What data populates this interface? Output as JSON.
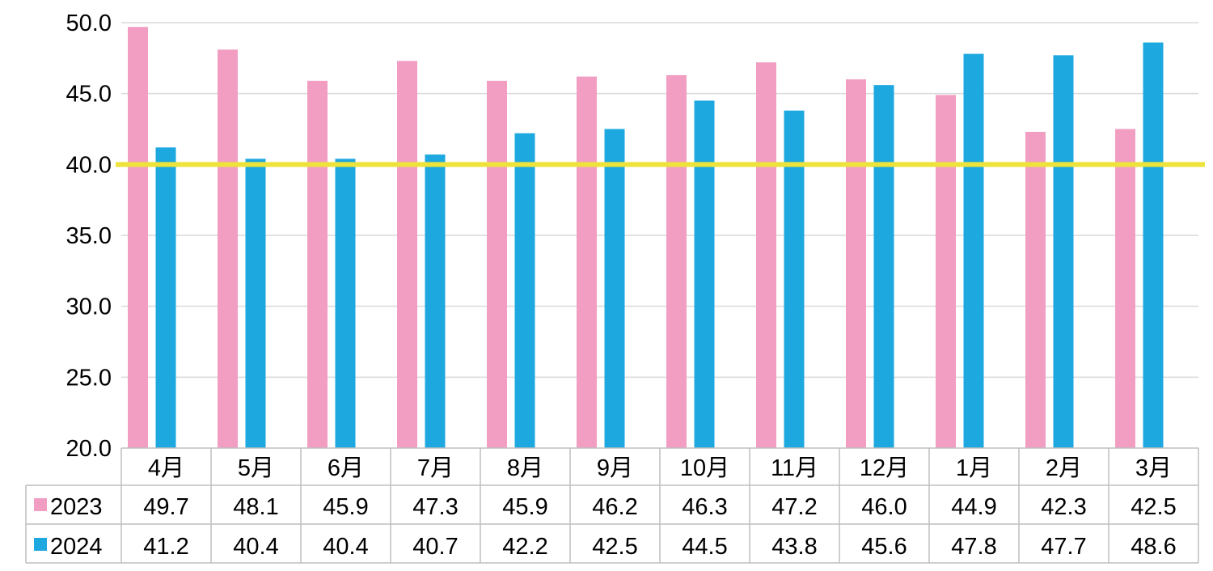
{
  "chart_data": {
    "type": "bar",
    "title": "",
    "xlabel": "",
    "ylabel": "",
    "ylim": [
      20,
      50
    ],
    "ytick_step": 5,
    "grid": true,
    "legend": "data-table-left",
    "categories": [
      "4月",
      "5月",
      "6月",
      "7月",
      "8月",
      "9月",
      "10月",
      "11月",
      "12月",
      "1月",
      "2月",
      "3月"
    ],
    "series": [
      {
        "name": "2023",
        "color": "#f19ec2",
        "values": [
          49.7,
          48.1,
          45.9,
          47.3,
          45.9,
          46.2,
          46.3,
          47.2,
          46.0,
          44.9,
          42.3,
          42.5
        ],
        "labels": [
          "49.7",
          "48.1",
          "45.9",
          "47.3",
          "45.9",
          "46.2",
          "46.3",
          "47.2",
          "46.0",
          "44.9",
          "42.3",
          "42.5"
        ]
      },
      {
        "name": "2024",
        "color": "#1ea8e0",
        "values": [
          41.2,
          40.4,
          40.4,
          40.7,
          42.2,
          42.5,
          44.5,
          43.8,
          45.6,
          47.8,
          47.7,
          48.6
        ],
        "labels": [
          "41.2",
          "40.4",
          "40.4",
          "40.7",
          "42.2",
          "42.5",
          "44.5",
          "43.8",
          "45.6",
          "47.8",
          "47.7",
          "48.6"
        ]
      }
    ],
    "reference_line": {
      "value": 40.0,
      "color": "#ede33a"
    },
    "yticks": [
      "20.0",
      "25.0",
      "30.0",
      "35.0",
      "40.0",
      "45.0",
      "50.0"
    ]
  }
}
